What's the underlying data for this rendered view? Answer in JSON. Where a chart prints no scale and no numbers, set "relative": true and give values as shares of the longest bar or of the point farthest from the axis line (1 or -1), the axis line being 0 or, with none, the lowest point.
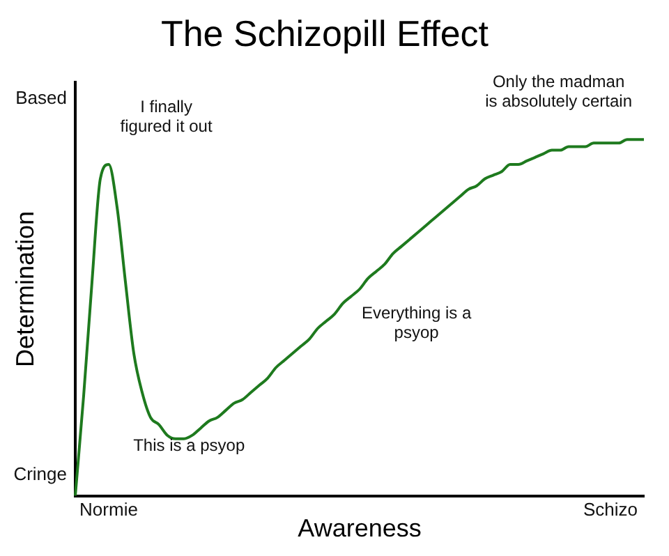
{
  "chart_data": {
    "type": "line",
    "title": "The Schizopill Effect",
    "xlabel": "Awareness",
    "ylabel": "Determination",
    "relative": true,
    "categories": [
      null,
      null,
      null,
      null,
      "Normie",
      null,
      null,
      null,
      null,
      null,
      null,
      null,
      null,
      null,
      null,
      null,
      null,
      null,
      null,
      null,
      null,
      null,
      null,
      null,
      null,
      null,
      null,
      null,
      null,
      null,
      null,
      null,
      null,
      null,
      null,
      null,
      null,
      null,
      null,
      null,
      null,
      null,
      null,
      null,
      null,
      null,
      null,
      null,
      null,
      null,
      null,
      null,
      null,
      null,
      null,
      null,
      null,
      null,
      null,
      null,
      null,
      null,
      null,
      null,
      "Schizo",
      null,
      null,
      null,
      null
    ],
    "series": [
      {
        "color": "#1e7a1e",
        "values": [
          0,
          0.28,
          0.6,
          0.89,
          0.93,
          0.81,
          0.6,
          0.4,
          0.29,
          0.22,
          0.2,
          0.17,
          0.16,
          0.16,
          0.17,
          0.19,
          0.21,
          0.22,
          0.24,
          0.26,
          0.27,
          0.29,
          0.31,
          0.33,
          0.36,
          0.38,
          0.4,
          0.42,
          0.44,
          0.47,
          0.49,
          0.51,
          0.54,
          0.56,
          0.58,
          0.61,
          0.63,
          0.65,
          0.68,
          0.7,
          0.72,
          0.74,
          0.76,
          0.78,
          0.8,
          0.82,
          0.84,
          0.86,
          0.87,
          0.89,
          0.9,
          0.91,
          0.93,
          0.93,
          0.94,
          0.95,
          0.96,
          0.97,
          0.97,
          0.98,
          0.98,
          0.98,
          0.99,
          0.99,
          0.99,
          0.99,
          1,
          1,
          1
        ]
      }
    ],
    "grid": false,
    "legend": false,
    "marker": "none",
    "line_style": "solid",
    "annotations": [
      "Based",
      "Cringe",
      "I finally\nfigured it out",
      "This is a psyop",
      "Everything is a\npsyop",
      "Only the madman\nis absolutely certain"
    ]
  }
}
